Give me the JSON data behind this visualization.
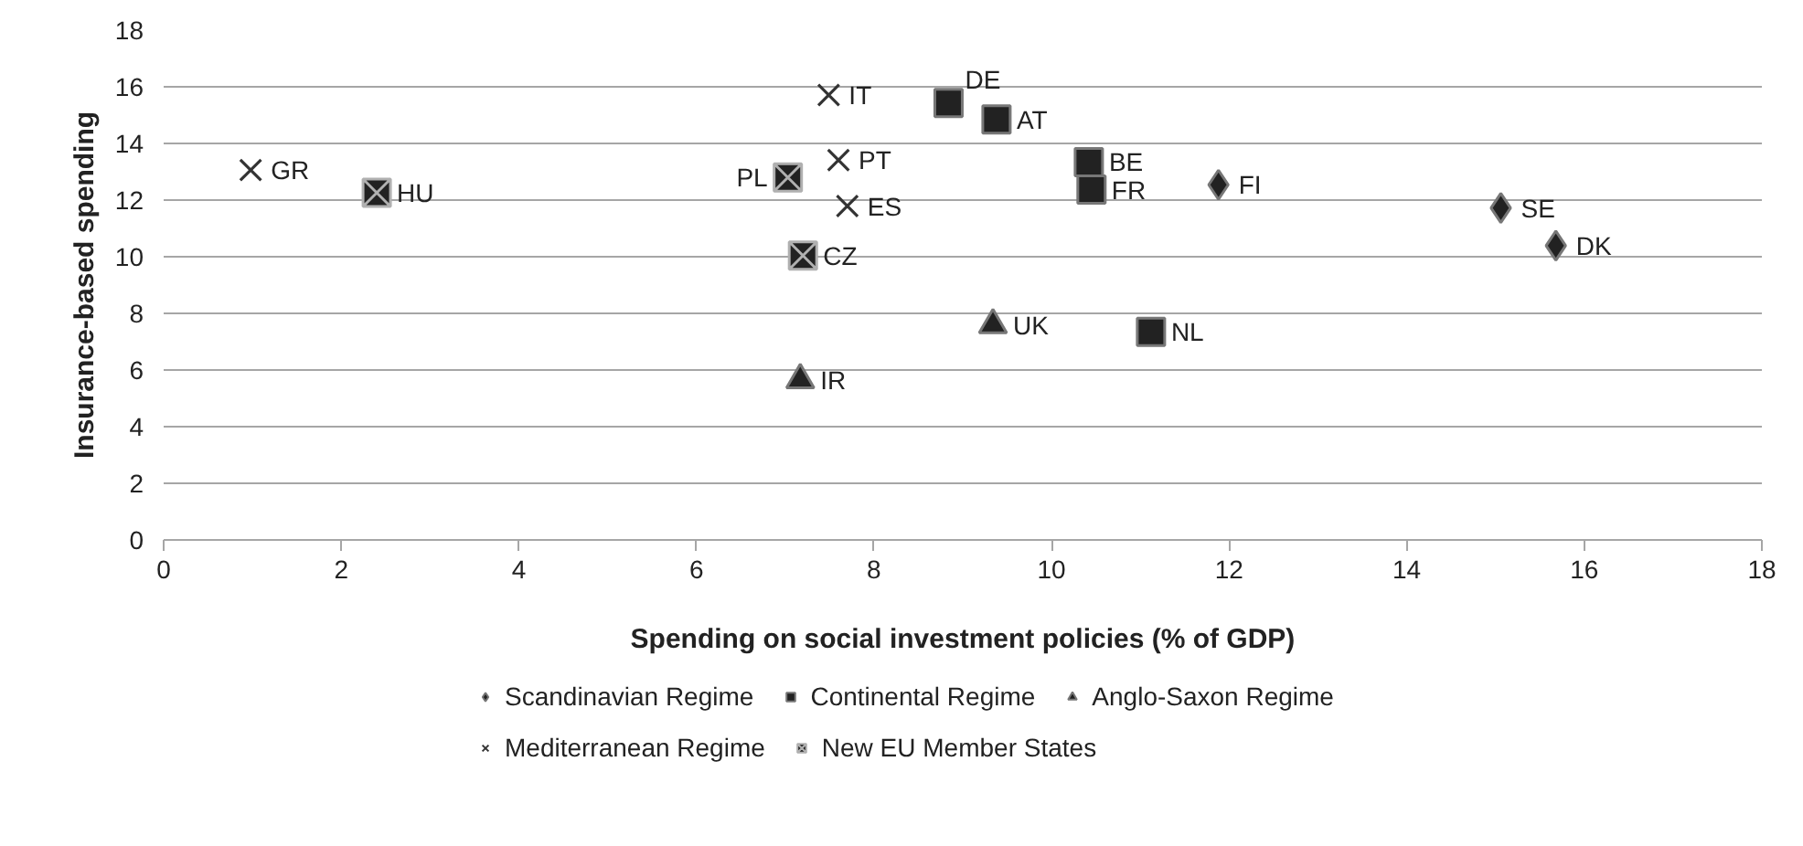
{
  "chart_data": {
    "type": "scatter",
    "xlabel": "Spending on social investment policies (% of GDP)",
    "ylabel": "Insurance-based spending",
    "xlim": [
      0,
      18
    ],
    "ylim": [
      0,
      18
    ],
    "xticks": [
      0,
      2,
      4,
      6,
      8,
      10,
      12,
      14,
      16,
      18
    ],
    "yticks": [
      0,
      2,
      4,
      6,
      8,
      10,
      12,
      14,
      16,
      18
    ],
    "grid": "y",
    "legend": "bottom",
    "series": [
      {
        "name": "Scandinavian Regime",
        "color": "#222222",
        "marker": "diamond",
        "x": [
          11.88,
          15.06,
          15.68
        ],
        "values": [
          12.54,
          11.72,
          10.39
        ]
      },
      {
        "name": "Continental Regime",
        "color": "#222222",
        "marker": "square",
        "x": [
          8.84,
          9.38,
          10.42,
          10.45,
          11.12
        ],
        "values": [
          15.43,
          14.85,
          13.34,
          12.37,
          7.35
        ]
      },
      {
        "name": "Anglo-Saxon Regime",
        "color": "#222222",
        "marker": "triangle",
        "x": [
          9.34,
          7.17
        ],
        "values": [
          7.59,
          5.65
        ]
      },
      {
        "name": "Mediterranean Regime",
        "color": "#333333",
        "marker": "cross",
        "x": [
          0.98,
          7.49,
          7.6,
          7.7
        ],
        "values": [
          13.06,
          15.71,
          13.41,
          11.79
        ]
      },
      {
        "name": "New EU Member States",
        "color": "#222222",
        "x": [
          2.4,
          7.03,
          7.2
        ],
        "values": [
          12.26,
          12.8,
          10.04
        ]
      }
    ],
    "annotations": [
      {
        "text": "FI",
        "x": 11.88,
        "y": 12.54
      },
      {
        "text": "SE",
        "x": 15.06,
        "y": 11.72
      },
      {
        "text": "DK",
        "x": 15.68,
        "y": 10.39
      },
      {
        "text": "DE",
        "x": 8.84,
        "y": 15.43
      },
      {
        "text": "AT",
        "x": 9.38,
        "y": 14.85
      },
      {
        "text": "BE",
        "x": 10.42,
        "y": 13.34
      },
      {
        "text": "FR",
        "x": 10.45,
        "y": 12.37
      },
      {
        "text": "NL",
        "x": 11.12,
        "y": 7.35
      },
      {
        "text": "UK",
        "x": 9.34,
        "y": 7.59
      },
      {
        "text": "IR",
        "x": 7.17,
        "y": 5.65
      },
      {
        "text": "GR",
        "x": 0.98,
        "y": 13.06
      },
      {
        "text": "IT",
        "x": 7.49,
        "y": 15.71
      },
      {
        "text": "PT",
        "x": 7.6,
        "y": 13.41
      },
      {
        "text": "ES",
        "x": 7.7,
        "y": 11.79
      },
      {
        "text": "HU",
        "x": 2.4,
        "y": 12.26
      },
      {
        "text": "PL",
        "x": 7.03,
        "y": 12.8
      },
      {
        "text": "CZ",
        "x": 7.2,
        "y": 10.04
      }
    ]
  }
}
